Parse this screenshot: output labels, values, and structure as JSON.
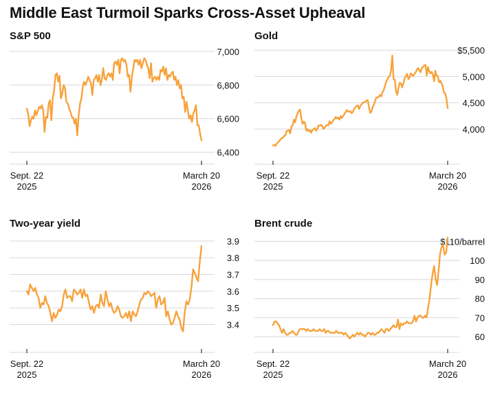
{
  "title": "Middle East Turmoil Sparks Cross-Asset Upheaval",
  "colors": {
    "line": "#F7A23B",
    "grid": "#D8D8D8",
    "axis": "#333333",
    "text": "#111111"
  },
  "chart_data": [
    {
      "type": "line",
      "title": "S&P 500",
      "x_start_label": [
        "Sept. 22",
        "2025"
      ],
      "x_end_label": [
        "March 20",
        "2026"
      ],
      "y_ticks": [
        6400,
        6600,
        6800,
        7000
      ],
      "y_tick_labels": [
        "6,400",
        "6,600",
        "6,800",
        "7,000"
      ],
      "ylim": [
        6390,
        7020
      ],
      "grid": true,
      "values": [
        6660,
        6628,
        6555,
        6590,
        6612,
        6600,
        6650,
        6620,
        6645,
        6670,
        6660,
        6680,
        6650,
        6520,
        6610,
        6605,
        6690,
        6710,
        6590,
        6720,
        6770,
        6860,
        6870,
        6820,
        6855,
        6720,
        6750,
        6800,
        6780,
        6700,
        6690,
        6660,
        6640,
        6610,
        6605,
        6570,
        6600,
        6500,
        6620,
        6690,
        6720,
        6790,
        6820,
        6800,
        6820,
        6850,
        6830,
        6810,
        6740,
        6830,
        6840,
        6860,
        6820,
        6860,
        6800,
        6830,
        6900,
        6840,
        6830,
        6860,
        6870,
        6850,
        6870,
        6830,
        6930,
        6940,
        6920,
        6950,
        6870,
        6950,
        6960,
        6940,
        6950,
        6920,
        6850,
        6860,
        6760,
        6850,
        6900,
        6950,
        6940,
        6950,
        6920,
        6950,
        6900,
        6930,
        6960,
        6950,
        6920,
        6900,
        6840,
        6930,
        6820,
        6840,
        6850,
        6830,
        6850,
        6830,
        6890,
        6880,
        6910,
        6860,
        6900,
        6830,
        6860,
        6850,
        6870,
        6880,
        6830,
        6850,
        6800,
        6830,
        6780,
        6800,
        6720,
        6730,
        6640,
        6700,
        6650,
        6600,
        6620,
        6580,
        6630,
        6650,
        6680,
        6560,
        6560,
        6510,
        6470
      ]
    },
    {
      "type": "line",
      "title": "Gold",
      "x_start_label": [
        "Sept. 22",
        "2025"
      ],
      "x_end_label": [
        "March 20",
        "2026"
      ],
      "y_ticks": [
        4000,
        4500,
        5000,
        5500
      ],
      "y_tick_labels": [
        "4,000",
        "4,500",
        "5,000",
        "$5,500"
      ],
      "ylim": [
        3620,
        5540
      ],
      "grid": true,
      "values": [
        3690,
        3700,
        3680,
        3720,
        3750,
        3770,
        3800,
        3830,
        3830,
        3870,
        3880,
        3960,
        3970,
        3980,
        3920,
        4050,
        4070,
        4180,
        4130,
        4240,
        4300,
        4350,
        4370,
        4210,
        4100,
        4140,
        4120,
        3970,
        4000,
        3960,
        3980,
        3930,
        3980,
        4000,
        4020,
        3970,
        4000,
        4070,
        4060,
        4080,
        4060,
        4000,
        4030,
        4060,
        4080,
        4070,
        4150,
        4100,
        4130,
        4170,
        4190,
        4230,
        4200,
        4220,
        4180,
        4250,
        4210,
        4250,
        4280,
        4320,
        4360,
        4330,
        4330,
        4340,
        4300,
        4330,
        4390,
        4410,
        4440,
        4450,
        4380,
        4440,
        4470,
        4500,
        4510,
        4520,
        4540,
        4550,
        4420,
        4310,
        4330,
        4420,
        4460,
        4540,
        4600,
        4600,
        4610,
        4650,
        4620,
        4700,
        4740,
        4820,
        4900,
        4950,
        4990,
        5010,
        5120,
        5400,
        4950,
        4940,
        4720,
        4650,
        4790,
        4880,
        4870,
        4790,
        4870,
        4960,
        5010,
        5050,
        4950,
        4980,
        5060,
        5030,
        5010,
        5050,
        5080,
        5130,
        5160,
        5110,
        5080,
        5160,
        5180,
        5210,
        5220,
        5020,
        5180,
        5100,
        5060,
        5090,
        5030,
        4910,
        5110,
        5010,
        5010,
        4890,
        4920,
        4870,
        4810,
        4700,
        4680,
        4580,
        4400
      ]
    },
    {
      "type": "line",
      "title": "Two-year yield",
      "x_start_label": [
        "Sept. 22",
        "2025"
      ],
      "x_end_label": [
        "March 20",
        "2026"
      ],
      "y_ticks": [
        3.4,
        3.5,
        3.6,
        3.7,
        3.8,
        3.9
      ],
      "y_tick_labels": [
        "3.4",
        "3.5",
        "3.6",
        "3.7",
        "3.8",
        "3.9"
      ],
      "ylim": [
        3.32,
        3.92
      ],
      "grid": true,
      "values": [
        3.6,
        3.58,
        3.64,
        3.62,
        3.6,
        3.62,
        3.58,
        3.56,
        3.5,
        3.53,
        3.52,
        3.57,
        3.53,
        3.51,
        3.47,
        3.42,
        3.47,
        3.44,
        3.46,
        3.49,
        3.48,
        3.51,
        3.58,
        3.61,
        3.56,
        3.57,
        3.57,
        3.54,
        3.61,
        3.6,
        3.58,
        3.59,
        3.61,
        3.56,
        3.61,
        3.57,
        3.58,
        3.53,
        3.49,
        3.51,
        3.47,
        3.51,
        3.52,
        3.5,
        3.58,
        3.53,
        3.51,
        3.6,
        3.55,
        3.51,
        3.53,
        3.49,
        3.47,
        3.48,
        3.51,
        3.49,
        3.45,
        3.44,
        3.45,
        3.47,
        3.44,
        3.48,
        3.42,
        3.48,
        3.46,
        3.45,
        3.48,
        3.52,
        3.55,
        3.56,
        3.59,
        3.58,
        3.6,
        3.59,
        3.57,
        3.58,
        3.59,
        3.5,
        3.55,
        3.57,
        3.52,
        3.53,
        3.56,
        3.45,
        3.48,
        3.43,
        3.4,
        3.41,
        3.44,
        3.48,
        3.45,
        3.43,
        3.38,
        3.36,
        3.47,
        3.54,
        3.52,
        3.55,
        3.62,
        3.73,
        3.71,
        3.68,
        3.66,
        3.78,
        3.87
      ]
    },
    {
      "type": "line",
      "title": "Brent crude",
      "x_start_label": [
        "Sept. 22",
        "2025"
      ],
      "x_end_label": [
        "March 20",
        "2026"
      ],
      "y_ticks": [
        60,
        70,
        80,
        90,
        100,
        110
      ],
      "y_tick_labels": [
        "60",
        "70",
        "80",
        "90",
        "100",
        "$110/barrel"
      ],
      "ylim": [
        57.5,
        113
      ],
      "grid": true,
      "values": [
        66,
        68,
        68,
        67,
        66,
        64,
        62,
        64,
        62,
        61,
        61,
        62,
        62,
        63,
        62,
        61,
        61,
        63,
        64,
        64,
        64,
        64,
        63,
        64,
        63,
        63,
        63,
        64,
        63,
        63,
        63,
        64,
        63,
        63,
        64,
        62,
        63,
        63,
        62,
        62,
        62,
        62,
        63,
        62,
        62,
        62,
        62,
        61,
        62,
        61,
        60,
        59,
        60,
        61,
        60,
        61,
        62,
        61,
        62,
        61,
        61,
        60,
        61,
        62,
        62,
        61,
        62,
        61,
        61,
        62,
        62,
        63,
        64,
        63,
        62,
        64,
        64,
        63,
        64,
        65,
        66,
        65,
        65,
        69,
        64,
        67,
        66,
        67,
        67,
        68,
        67,
        67,
        67,
        68,
        71,
        68,
        70,
        71,
        71,
        70,
        70,
        71,
        70,
        75,
        80,
        87,
        93,
        97,
        90,
        87,
        95,
        104,
        107,
        108,
        103,
        104,
        112
      ]
    }
  ]
}
